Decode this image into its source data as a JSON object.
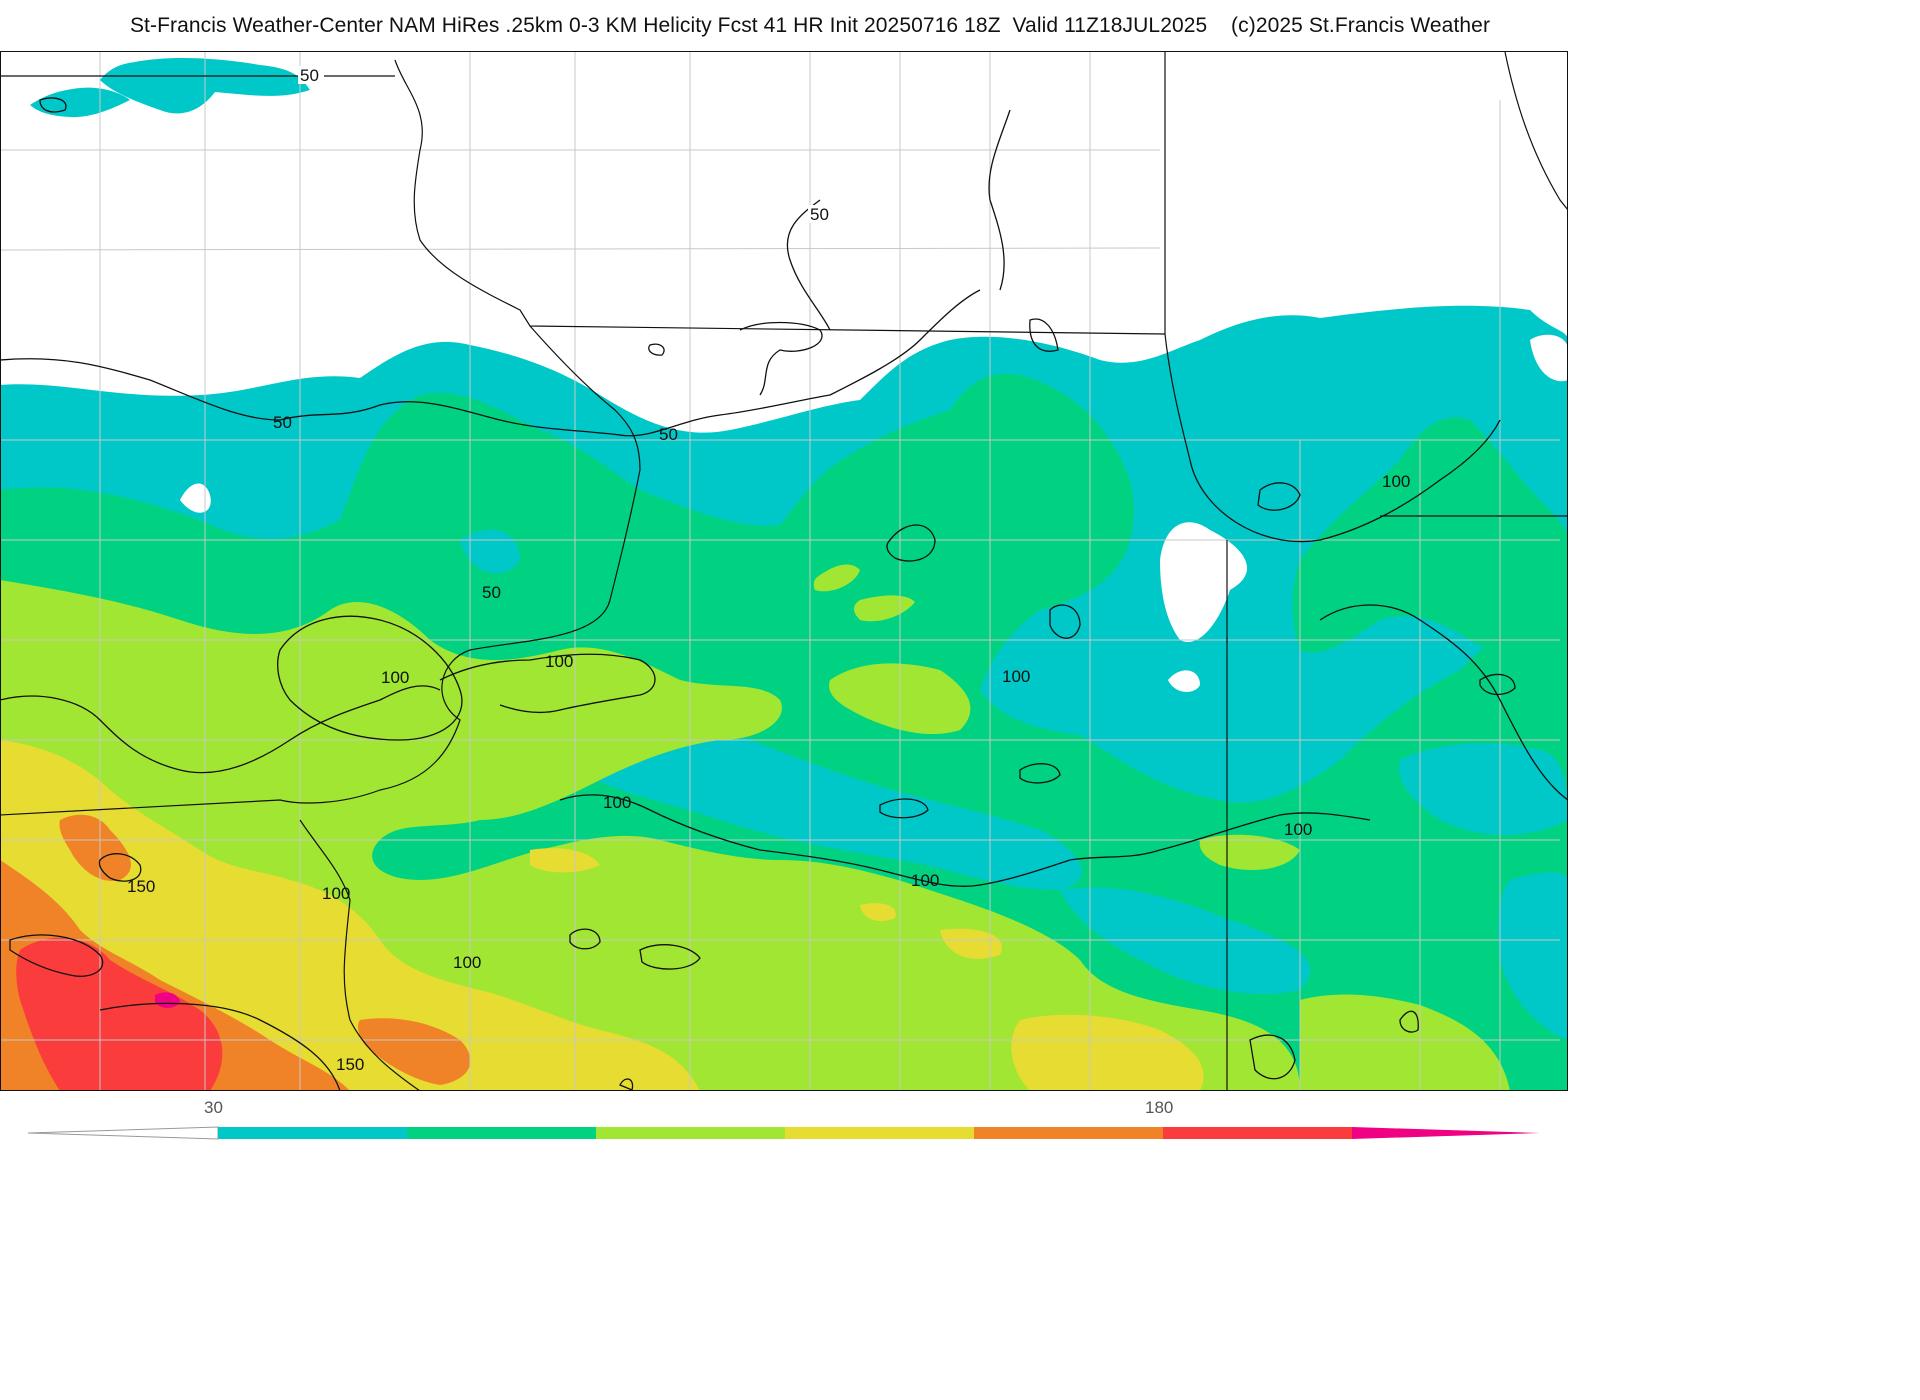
{
  "title": "St-Francis Weather-Center NAM HiRes .25km 0-3 KM Helicity Fcst 41 HR Init 20250716 18Z  Valid 11Z18JUL2025    (c)2025 St.Francis Weather",
  "colorbar": {
    "tick_labels": [
      "30",
      "180"
    ],
    "colors": [
      "#00c8c8",
      "#00d282",
      "#a0e632",
      "#e6dc32",
      "#f08228",
      "#fa3c3c",
      "#f00082"
    ]
  },
  "contour_labels": {
    "nw_50": "50",
    "north_50": "50",
    "west_50": "50",
    "center_50": "50",
    "mid_50": "50",
    "west_100": "100",
    "center_100": "100",
    "east_100": "100",
    "ne_100": "100",
    "sw_150": "150",
    "sw_100": "100",
    "mid_100": "100",
    "south_100": "100",
    "se_100": "100",
    "far_east_100": "100",
    "bottom_150": "150"
  },
  "palette": {
    "cyan": "#00c8c8",
    "green": "#00d282",
    "lime": "#a0e632",
    "yellow": "#e6dc32",
    "orange": "#f08228",
    "red": "#fa3c3c",
    "magenta": "#f00082"
  }
}
